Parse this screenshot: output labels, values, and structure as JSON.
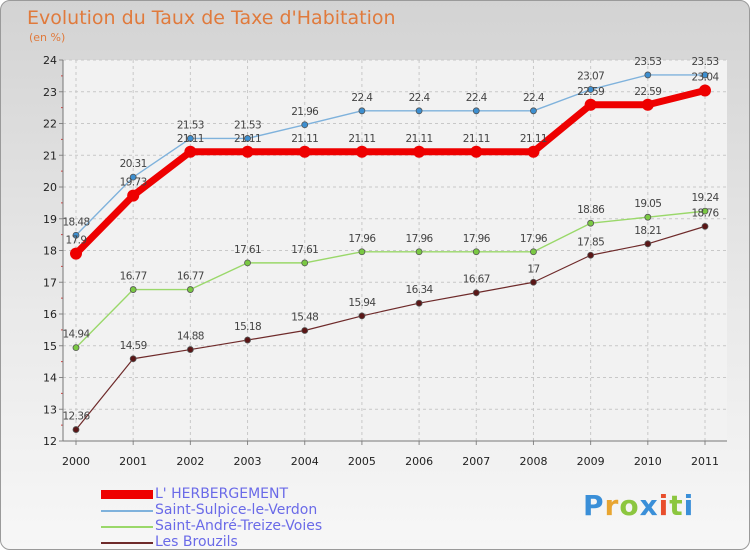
{
  "title": "Evolution du Taux de Taxe d'Habitation",
  "subtitle": "(en %)",
  "logo": {
    "letters": [
      "P",
      "r",
      "o",
      "x",
      "i",
      "t",
      "i"
    ],
    "colors": [
      "#3a8fd8",
      "#e8a531",
      "#8cc63f",
      "#3a8fd8",
      "#e84e2c",
      "#8cc63f",
      "#3a8fd8"
    ]
  },
  "chart_data": {
    "type": "line",
    "x": [
      "2000",
      "2001",
      "2002",
      "2003",
      "2004",
      "2005",
      "2006",
      "2007",
      "2008",
      "2009",
      "2010",
      "2011"
    ],
    "ylim": [
      12,
      24
    ],
    "yticks": [
      "12",
      "13",
      "14",
      "15",
      "16",
      "17",
      "18",
      "19",
      "20",
      "21",
      "22",
      "23",
      "24"
    ],
    "grid": true,
    "legend_position": "bottom-left",
    "series": [
      {
        "name": "Saint-Sulpice-le-Verdon",
        "color": "#7fb2dc",
        "point_color": "#3d8fd0",
        "width": 1.4,
        "point_radius": 3,
        "values": [
          18.48,
          20.31,
          21.53,
          21.53,
          21.96,
          22.4,
          22.4,
          22.4,
          22.4,
          23.07,
          23.53,
          23.53
        ],
        "labels": [
          "18.48",
          "20.31",
          "21.53",
          "21.53",
          "21.96",
          "22.4",
          "22.4",
          "22.4",
          "22.4",
          "23.07",
          "23.53",
          "23.53"
        ],
        "label_dy": -10
      },
      {
        "name": "Saint-André-Treize-Voies",
        "color": "#9ad86a",
        "point_color": "#7ac943",
        "width": 1.4,
        "point_radius": 3,
        "values": [
          14.94,
          16.77,
          16.77,
          17.61,
          17.61,
          17.96,
          17.96,
          17.96,
          17.96,
          18.86,
          19.05,
          19.24
        ],
        "labels": [
          "14.94",
          "16.77",
          "16.77",
          "17.61",
          "17.61",
          "17.96",
          "17.96",
          "17.96",
          "17.96",
          "18.86",
          "19.05",
          "19.24"
        ],
        "label_dy": -10
      },
      {
        "name": "Les Brouzils",
        "color": "#6e2a2a",
        "point_color": "#5a1616",
        "width": 1.2,
        "point_radius": 3,
        "values": [
          12.36,
          14.59,
          14.88,
          15.18,
          15.48,
          15.94,
          16.34,
          16.67,
          17,
          17.85,
          18.21,
          18.76
        ],
        "labels": [
          "12.36",
          "14.59",
          "14.88",
          "15.18",
          "15.48",
          "15.94",
          "16.34",
          "16.67",
          "17",
          "17.85",
          "18.21",
          "18.76"
        ],
        "label_dy": -10
      },
      {
        "name": "L' HERBERGEMENT",
        "color": "#ee0000",
        "point_color": "#ee0000",
        "width": 7,
        "point_radius": 6,
        "values": [
          17.9,
          19.73,
          21.11,
          21.11,
          21.11,
          21.11,
          21.11,
          21.11,
          21.11,
          22.59,
          22.59,
          23.04
        ],
        "labels": [
          "17.9",
          "19.73",
          "21.11",
          "21.11",
          "21.11",
          "21.11",
          "21.11",
          "21.11",
          "21.11",
          "22.59",
          "22.59",
          "23.04"
        ],
        "label_dy": -10
      }
    ]
  },
  "legend": [
    {
      "name": "L' HERBERGEMENT",
      "color": "#ee0000",
      "thick": true
    },
    {
      "name": "Saint-Sulpice-le-Verdon",
      "color": "#7fb2dc",
      "thick": false
    },
    {
      "name": "Saint-André-Treize-Voies",
      "color": "#9ad86a",
      "thick": false
    },
    {
      "name": "Les Brouzils",
      "color": "#6e2a2a",
      "thick": false
    }
  ]
}
